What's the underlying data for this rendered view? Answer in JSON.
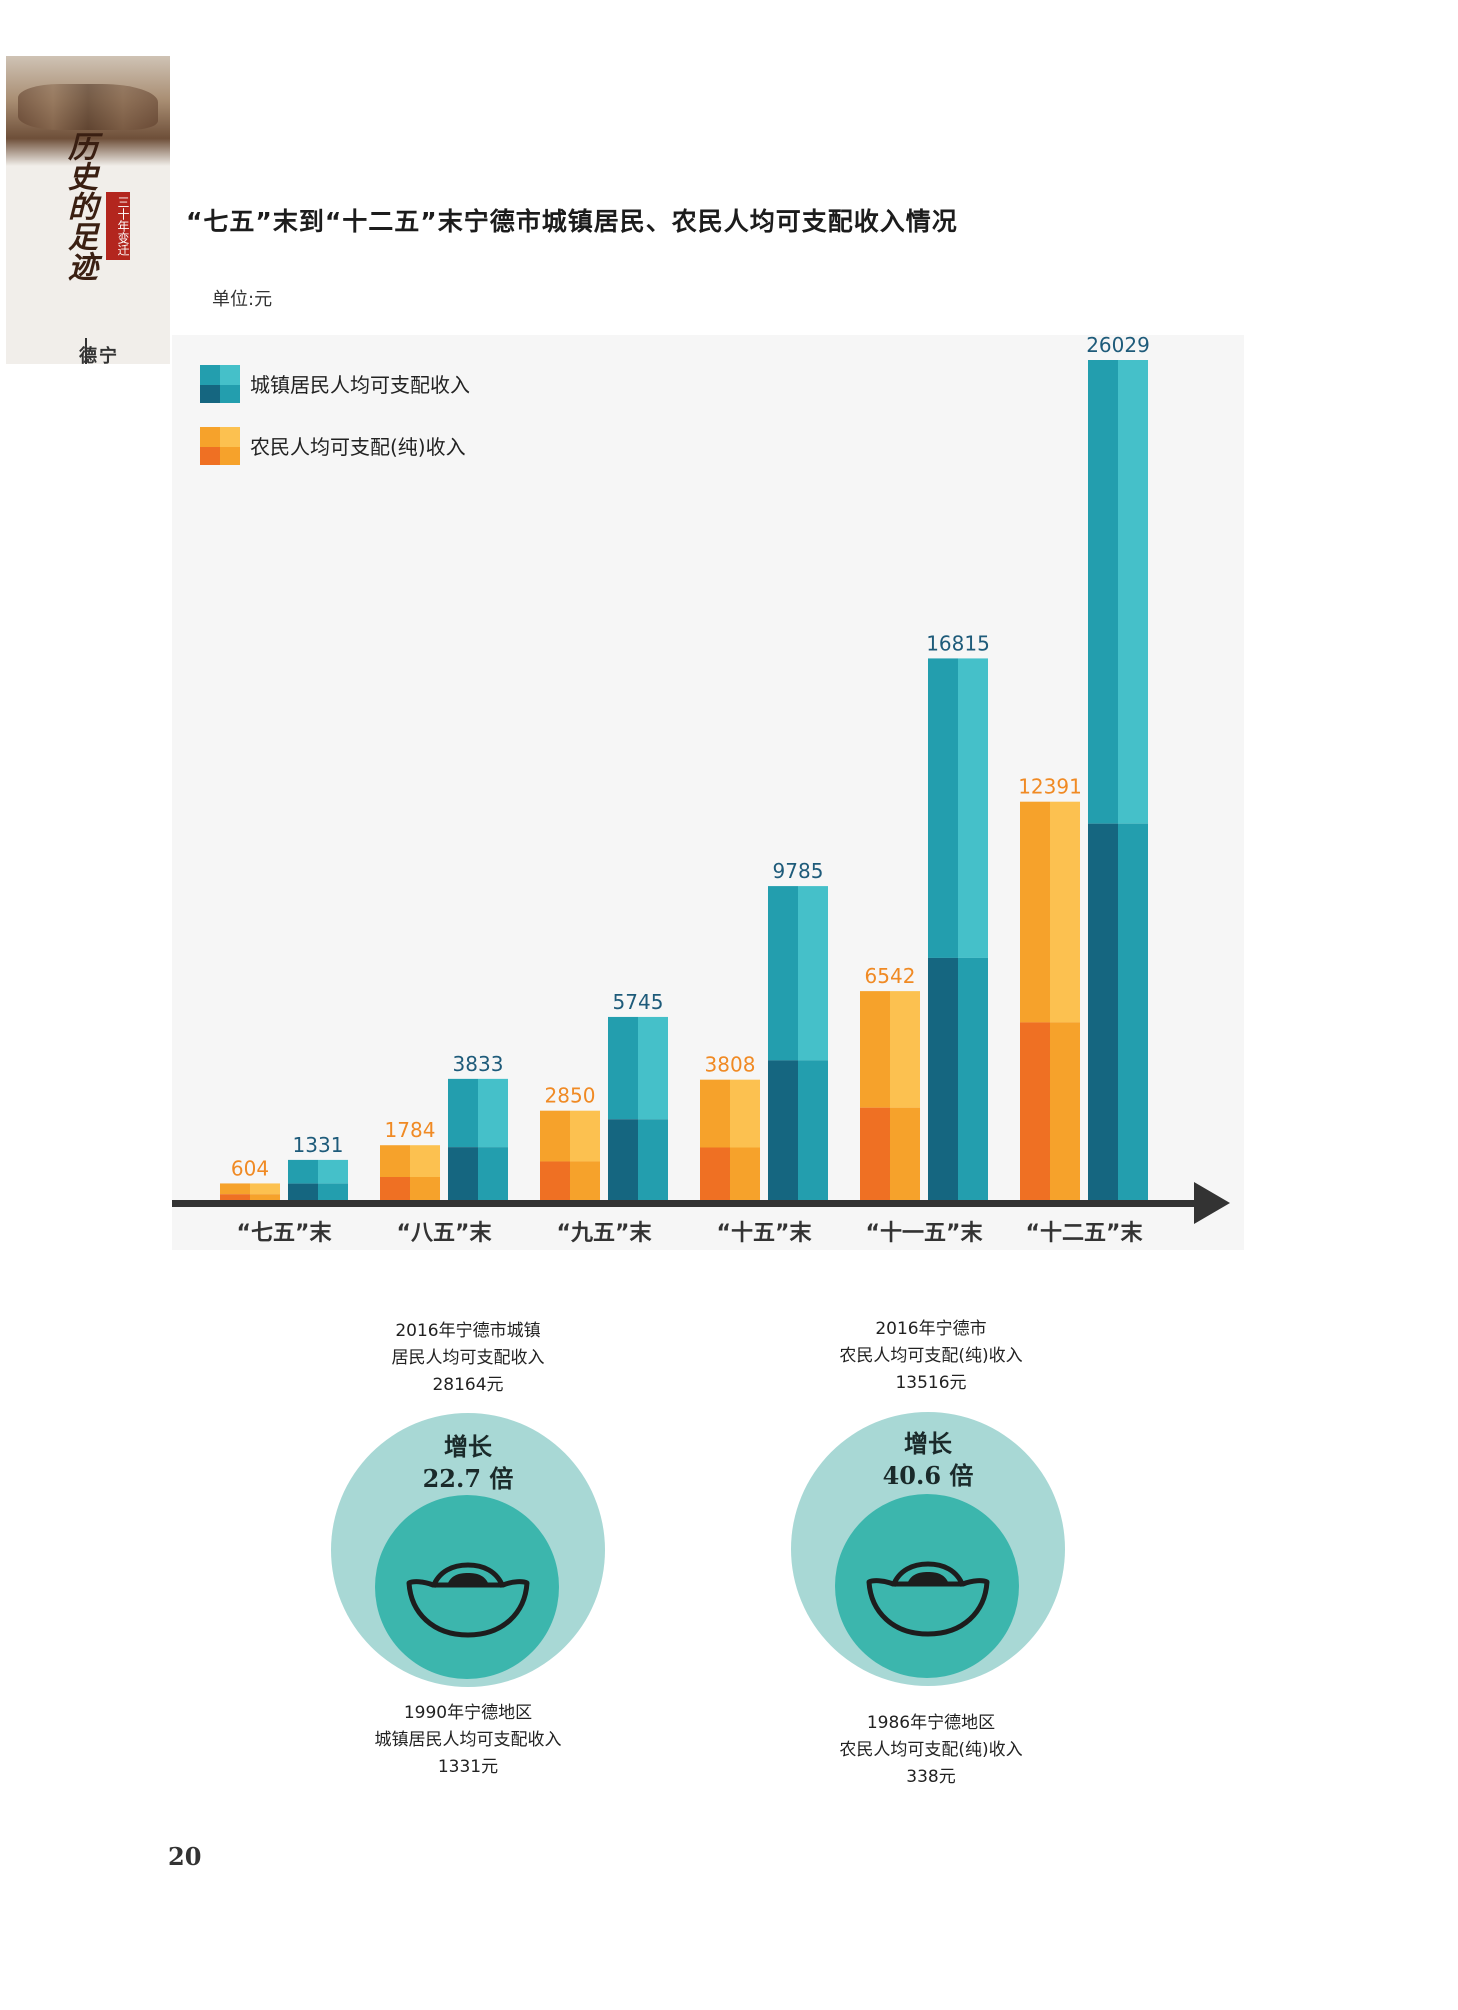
{
  "badge": {
    "title": "历史的足迹",
    "stamp": "三十年变迁",
    "sub": "宁德"
  },
  "chart_title": "“七五”末到“十二五”末宁德市城镇居民、农民人均可支配收入情况",
  "unit": "单位:元",
  "colors": {
    "urban_dark": "#156680",
    "urban_mid": "#239eae",
    "urban_light": "#45c0c9",
    "rural_dark": "#ef7023",
    "rural_mid": "#f6a22b",
    "rural_light": "#fcc150",
    "urban_label": "#1e5b7a",
    "rural_label": "#f08a24",
    "axis": "#333333",
    "panel": "#f6f6f6"
  },
  "chart_data": {
    "type": "bar",
    "categories": [
      "“七五”末",
      "“八五”末",
      "“九五”末",
      "“十五”末",
      "“十一五”末",
      "“十二五”末"
    ],
    "series": [
      {
        "name": "农民人均可支配(纯)收入",
        "values": [
          604,
          1784,
          2850,
          3808,
          6542,
          12391
        ]
      },
      {
        "name": "城镇居民人均可支配收入",
        "values": [
          1331,
          3833,
          5745,
          9785,
          16815,
          26029
        ]
      }
    ],
    "ylim": [
      0,
      26029
    ],
    "legend": "top-left"
  },
  "circles": [
    {
      "top": [
        "2016年宁德市城镇",
        "居民人均可支配收入",
        "28164元"
      ],
      "growth_l1": "增长",
      "growth_l2": "22.7 倍",
      "bottom": [
        "1990年宁德地区",
        "城镇居民人均可支配收入",
        "1331元"
      ]
    },
    {
      "top": [
        "2016年宁德市",
        "农民人均可支配(纯)收入",
        "13516元"
      ],
      "growth_l1": "增长",
      "growth_l2": "40.6 倍",
      "bottom": [
        "1986年宁德地区",
        "农民人均可支配(纯)收入",
        "338元"
      ]
    }
  ],
  "page_number": "20"
}
